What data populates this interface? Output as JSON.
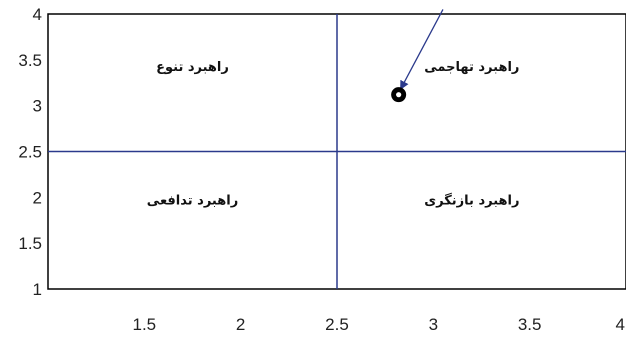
{
  "chart_data": {
    "type": "scatter",
    "title": "",
    "xlabel": "",
    "ylabel": "",
    "xlim": [
      1,
      4
    ],
    "ylim": [
      1,
      4
    ],
    "x_ticks": [
      "1.5",
      "2",
      "2.5",
      "3",
      "3.5",
      "4"
    ],
    "y_ticks": [
      "4",
      "3.5",
      "3",
      "2.5",
      "2",
      "1.5",
      "1"
    ],
    "grid": false,
    "divider_lines": {
      "x": 2.5,
      "y": 2.5,
      "color": "#2b3a8c"
    },
    "quadrant_labels": [
      {
        "text": "راهبرد تنوع",
        "x": 1.75,
        "y": 3.38
      },
      {
        "text": "راهبرد تهاجمی",
        "x": 3.2,
        "y": 3.38
      },
      {
        "text": "راهبرد تدافعی",
        "x": 1.75,
        "y": 1.92
      },
      {
        "text": "راهبرد بازنگری",
        "x": 3.2,
        "y": 1.92
      }
    ],
    "points": [
      {
        "x": 2.82,
        "y": 3.12
      }
    ],
    "arrow": {
      "from": {
        "x": 3.05,
        "y": 4.05
      },
      "to": {
        "x": 2.83,
        "y": 3.18
      }
    }
  }
}
